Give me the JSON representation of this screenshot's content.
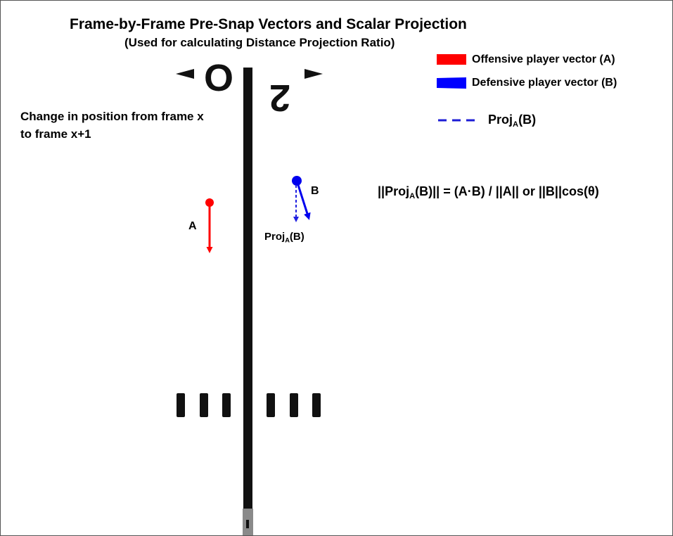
{
  "header": {
    "title": "Frame-by-Frame Pre-Snap Vectors and Scalar Projection",
    "subtitle": "(Used for calculating Distance Projection Ratio)"
  },
  "annotation": {
    "change_line1": "Change in position from frame x",
    "change_line2": "to frame x+1"
  },
  "legend": {
    "offense_label": "Offensive player vector (A)",
    "offense_color": "#ff0000",
    "defense_label": "Defensive player vector (B)",
    "defense_color": "#0000ff",
    "proj_prefix": "Proj",
    "proj_sub": "A",
    "proj_suffix": "(B)"
  },
  "formula": {
    "part1": "||Proj",
    "sub": "A",
    "part2": "(B)|| = (A·B) / ||A|| or ||B||cos(θ)"
  },
  "vectors": {
    "label_a": "A",
    "label_b": "B",
    "proj_prefix": "Proj",
    "proj_sub": "A",
    "proj_suffix": "(B)"
  },
  "field": {
    "yard_number": "50",
    "yard_number_rendered": "0|2",
    "line_color": "#111111"
  }
}
